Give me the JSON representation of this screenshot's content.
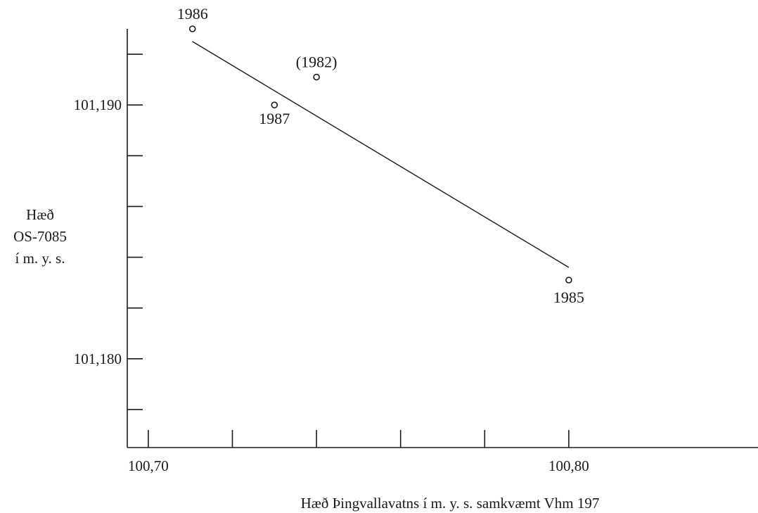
{
  "chart_data": {
    "type": "scatter",
    "xlabel": "Hæð Þingvallavatns í m. y. s. samkvæmt Vhm 197",
    "ylabel_lines": [
      "Hæð",
      "OS-7085",
      "í m. y. s."
    ],
    "xlim": [
      100.695,
      100.845
    ],
    "ylim": [
      101.1765,
      101.193
    ],
    "x_ticks": [
      100.7,
      100.72,
      100.74,
      100.76,
      100.78,
      100.8
    ],
    "x_tick_labels": [
      "100,70",
      "",
      "",
      "",
      "",
      "100,80"
    ],
    "y_ticks": [
      101.178,
      101.18,
      101.182,
      101.184,
      101.186,
      101.188,
      101.19,
      101.192
    ],
    "y_tick_labels": [
      "",
      "101,180",
      "",
      "",
      "",
      "",
      "101,190",
      ""
    ],
    "points": [
      {
        "label": "1986",
        "x": 100.7105,
        "y": 101.193
      },
      {
        "label": "(1982)",
        "x": 100.74,
        "y": 101.1911
      },
      {
        "label": "1987",
        "x": 100.73,
        "y": 101.19
      },
      {
        "label": "1985",
        "x": 100.8,
        "y": 101.1831
      }
    ],
    "fit_line": {
      "x": [
        100.7105,
        100.8
      ],
      "y": [
        101.1925,
        101.1836
      ]
    },
    "grid": false,
    "legend": "none"
  }
}
